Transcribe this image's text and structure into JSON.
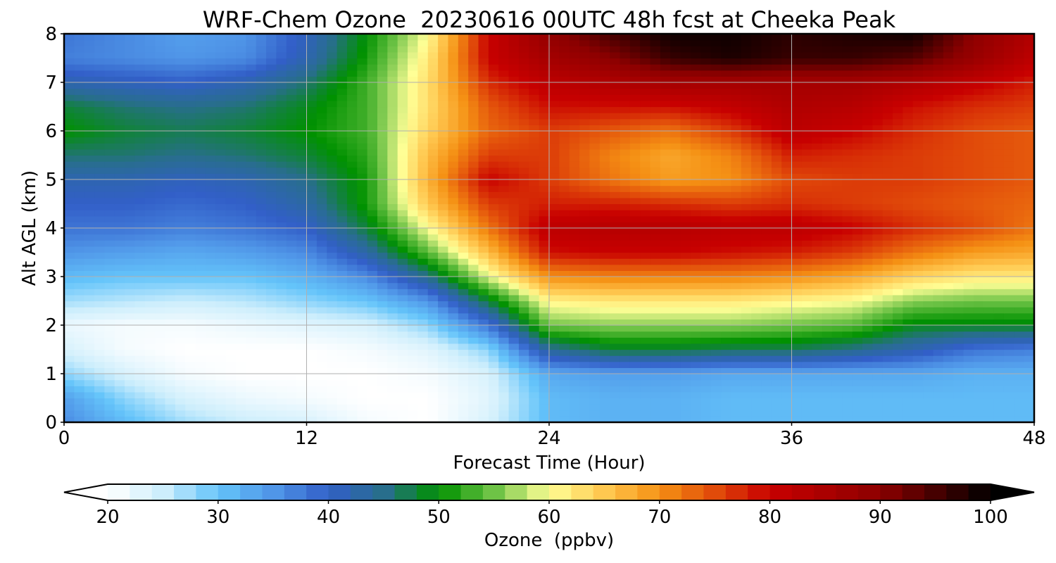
{
  "chart_data": {
    "type": "heatmap",
    "title": "WRF-Chem Ozone  20230616 00UTC 48h fcst at Cheeka Peak",
    "xlabel": "Forecast Time (Hour)",
    "ylabel": "Alt AGL (km)",
    "xlim": [
      0,
      48
    ],
    "ylim": [
      0,
      8
    ],
    "xticks": [
      0,
      12,
      24,
      36,
      48
    ],
    "yticks": [
      0,
      1,
      2,
      3,
      4,
      5,
      6,
      7,
      8
    ],
    "grid": true,
    "colorbar": {
      "label": "Ozone  (ppbv)",
      "min": 20,
      "max": 100,
      "ticks": [
        20,
        30,
        40,
        50,
        60,
        70,
        80,
        90,
        100
      ],
      "extend": "both"
    },
    "x": [
      0,
      3,
      6,
      9,
      12,
      15,
      18,
      21,
      24,
      27,
      30,
      33,
      36,
      39,
      42,
      45,
      48
    ],
    "y": [
      0,
      0.5,
      1,
      1.5,
      2,
      2.5,
      3,
      3.5,
      4,
      4.5,
      5,
      5.5,
      6,
      6.5,
      7,
      7.5,
      8
    ],
    "z": [
      [
        36,
        31,
        27,
        25,
        24,
        21,
        20,
        24,
        31,
        32,
        32,
        31,
        31,
        31,
        31,
        31,
        31
      ],
      [
        34,
        28,
        24,
        22,
        21,
        20,
        20,
        23,
        31,
        32,
        32,
        31,
        31,
        31,
        31,
        31,
        31
      ],
      [
        28,
        24,
        21,
        20,
        20,
        20,
        21,
        24,
        33,
        34,
        34,
        33,
        33,
        33,
        33,
        32,
        32
      ],
      [
        24,
        21,
        20,
        20,
        20,
        21,
        23,
        28,
        44,
        48,
        48,
        47,
        47,
        45,
        42,
        38,
        37
      ],
      [
        22,
        21,
        21,
        22,
        23,
        24,
        28,
        38,
        55,
        56,
        56,
        56,
        55,
        54,
        49,
        49,
        49
      ],
      [
        27,
        26,
        25,
        26,
        28,
        30,
        35,
        48,
        61,
        62,
        62,
        62,
        61,
        60,
        56,
        55,
        55
      ],
      [
        31,
        30,
        30,
        30,
        32,
        36,
        45,
        59,
        70,
        71,
        71,
        71,
        70,
        68,
        64,
        62,
        62
      ],
      [
        35,
        34,
        33,
        34,
        36,
        43,
        54,
        66,
        79,
        80,
        80,
        79,
        78,
        76,
        72,
        69,
        68
      ],
      [
        38,
        38,
        37,
        38,
        40,
        48,
        60,
        72,
        82,
        83,
        83,
        82,
        82,
        80,
        77,
        75,
        72
      ],
      [
        40,
        40,
        39,
        40,
        43,
        51,
        65,
        76,
        78,
        78,
        77,
        76,
        77,
        76,
        75,
        74,
        73
      ],
      [
        42,
        42,
        41,
        42,
        45,
        51,
        67,
        80,
        76,
        72,
        69,
        70,
        75,
        76,
        76,
        75,
        74
      ],
      [
        46,
        46,
        45,
        46,
        48,
        52,
        66,
        76,
        76,
        71,
        68,
        71,
        78,
        77,
        76,
        75,
        74
      ],
      [
        50,
        48,
        47,
        48,
        50,
        53,
        64,
        73,
        76,
        74,
        72,
        76,
        82,
        80,
        77,
        75,
        74
      ],
      [
        48,
        46,
        45,
        46,
        49,
        53,
        63,
        74,
        79,
        79,
        79,
        81,
        84,
        83,
        79,
        77,
        76
      ],
      [
        42,
        41,
        40,
        42,
        46,
        53,
        63,
        77,
        82,
        84,
        86,
        86,
        86,
        86,
        84,
        81,
        78
      ],
      [
        37,
        36,
        35,
        36,
        42,
        51,
        62,
        80,
        86,
        90,
        96,
        98,
        96,
        96,
        94,
        88,
        82
      ],
      [
        38,
        36,
        34,
        35,
        41,
        50,
        60,
        80,
        89,
        95,
        99,
        99,
        97,
        98,
        99,
        90,
        84
      ]
    ]
  }
}
